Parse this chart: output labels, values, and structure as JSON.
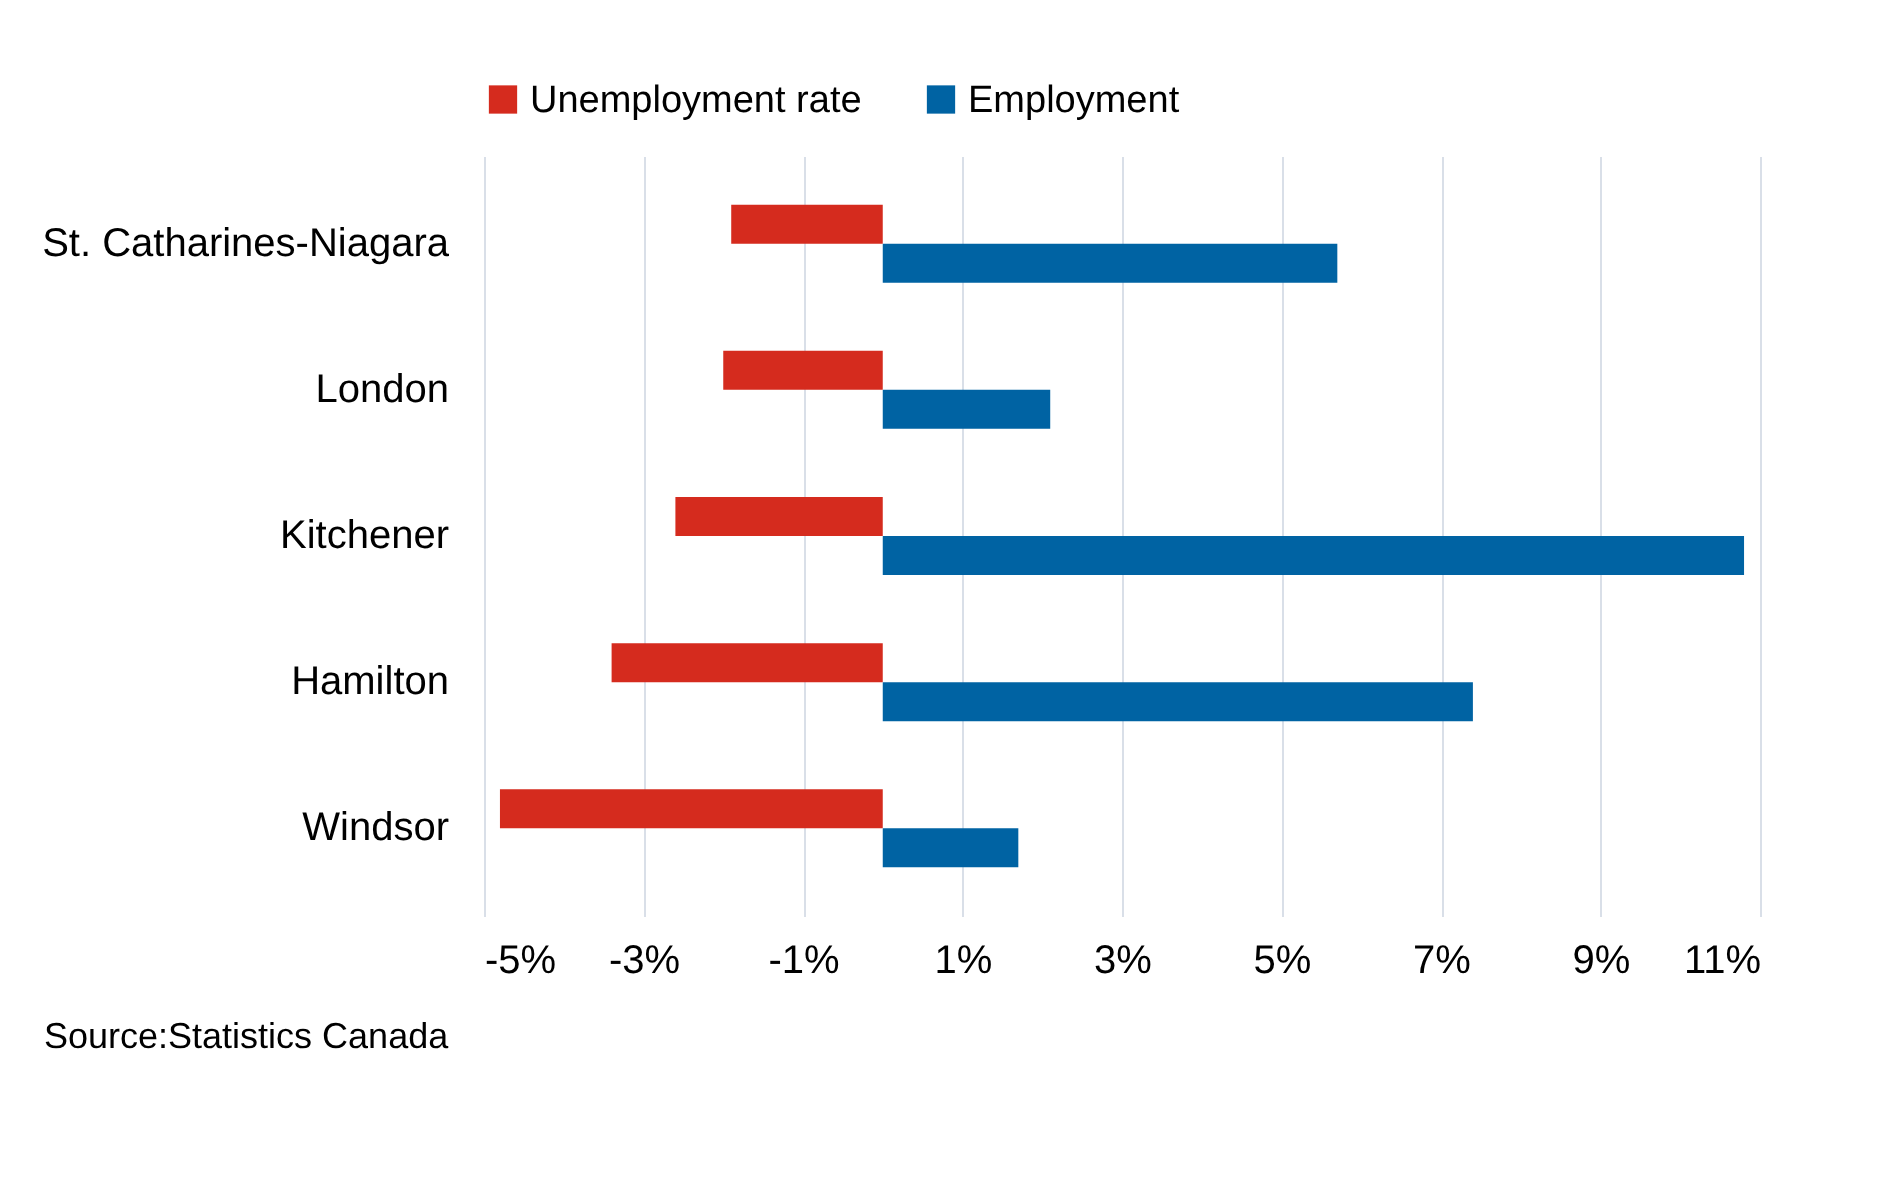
{
  "chart_data": {
    "type": "bar",
    "orientation": "horizontal",
    "categories": [
      "St. Catharines-Niagara",
      "London",
      "Kitchener",
      "Hamilton",
      "Windsor"
    ],
    "series": [
      {
        "name": "Unemployment rate",
        "color": "#d52b1e",
        "values": [
          -1.9,
          -2.0,
          -2.6,
          -3.4,
          -4.8
        ]
      },
      {
        "name": "Employment",
        "color": "#0063a3",
        "values": [
          5.7,
          2.1,
          10.8,
          7.4,
          1.7
        ]
      }
    ],
    "xlim": [
      -5,
      11
    ],
    "xticks": [
      {
        "value": -5,
        "label": "-5%"
      },
      {
        "value": -3,
        "label": "-3%"
      },
      {
        "value": -1,
        "label": "-1%"
      },
      {
        "value": 1,
        "label": "1%"
      },
      {
        "value": 3,
        "label": "3%"
      },
      {
        "value": 5,
        "label": "5%"
      },
      {
        "value": 7,
        "label": "7%"
      },
      {
        "value": 9,
        "label": "9%"
      },
      {
        "value": 11,
        "label": "11%"
      }
    ],
    "grid": "x",
    "legend": "top",
    "annotations": [
      "Source:Statistics Canada"
    ]
  }
}
